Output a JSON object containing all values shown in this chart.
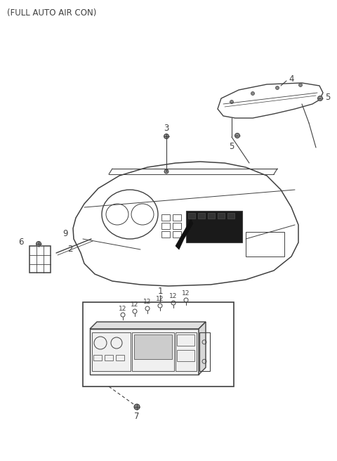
{
  "title": "(FULL AUTO AIR CON)",
  "bg_color": "#ffffff",
  "line_color": "#404040",
  "text_color": "#404040",
  "fig_width": 4.8,
  "fig_height": 6.56,
  "dpi": 100
}
